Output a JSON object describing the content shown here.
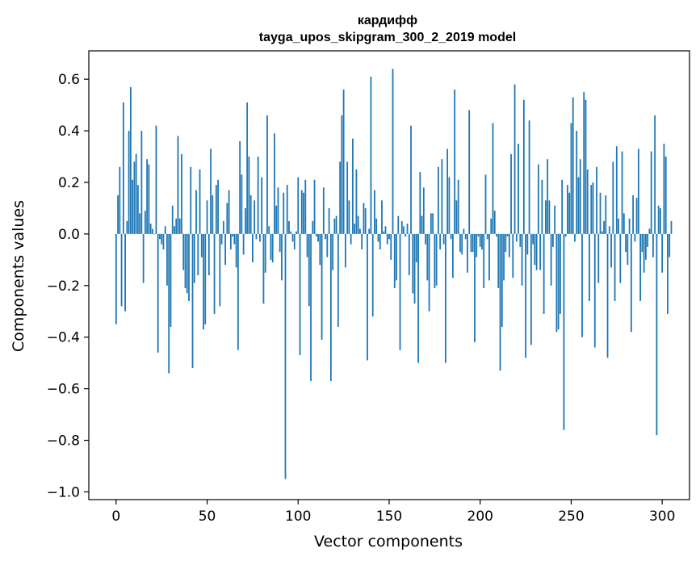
{
  "chart_data": {
    "type": "bar",
    "title": "кардифф",
    "subtitle": "tayga_upos_skipgram_300_2_2019 model",
    "xlabel": "Vector components",
    "ylabel": "Components values",
    "xlim": [
      -15,
      315
    ],
    "ylim": [
      -1.03,
      0.71
    ],
    "xticks": [
      0,
      50,
      100,
      150,
      200,
      250,
      300
    ],
    "yticks": [
      0.6,
      0.4,
      0.2,
      0.0,
      -0.2,
      -0.4,
      -0.6,
      -0.8,
      -1.0
    ],
    "ytick_labels": [
      "0.6",
      "0.4",
      "0.2",
      "0.0",
      "−0.2",
      "−0.4",
      "−0.6",
      "−0.8",
      "−1.0"
    ],
    "bar_color": "#1f77b4",
    "values": [
      -0.35,
      0.15,
      0.26,
      -0.28,
      0.51,
      -0.3,
      0.05,
      0.4,
      0.57,
      0.21,
      0.28,
      0.31,
      0.19,
      0.08,
      0.4,
      -0.19,
      0.09,
      0.29,
      0.27,
      0.04,
      0.02,
      0.0,
      0.42,
      -0.46,
      -0.02,
      -0.04,
      -0.06,
      0.03,
      -0.2,
      -0.54,
      -0.36,
      0.11,
      0.03,
      0.06,
      0.38,
      0.06,
      0.31,
      -0.14,
      -0.21,
      -0.23,
      -0.26,
      0.26,
      -0.52,
      -0.19,
      0.17,
      -0.16,
      0.25,
      -0.09,
      -0.37,
      -0.35,
      0.13,
      -0.16,
      0.33,
      0.15,
      -0.31,
      0.19,
      0.21,
      -0.28,
      -0.04,
      0.05,
      -0.12,
      0.12,
      0.17,
      -0.06,
      -0.01,
      -0.04,
      -0.13,
      -0.45,
      0.36,
      0.23,
      -0.08,
      0.1,
      0.51,
      0.3,
      0.15,
      -0.11,
      0.13,
      -0.02,
      0.3,
      -0.03,
      0.22,
      -0.27,
      -0.15,
      0.46,
      0.03,
      -0.1,
      -0.11,
      0.39,
      0.11,
      0.18,
      -0.07,
      -0.18,
      0.16,
      -0.95,
      0.19,
      0.05,
      0.01,
      -0.03,
      -0.06,
      0.01,
      0.22,
      -0.47,
      0.17,
      0.16,
      0.21,
      -0.09,
      -0.28,
      -0.57,
      0.05,
      0.21,
      -0.01,
      -0.03,
      -0.12,
      -0.41,
      0.18,
      -0.02,
      -0.09,
      0.1,
      -0.57,
      -0.14,
      0.06,
      0.07,
      -0.36,
      0.28,
      0.46,
      0.56,
      -0.13,
      0.28,
      0.13,
      -0.04,
      0.37,
      0.04,
      0.25,
      0.07,
      0.02,
      -0.06,
      0.12,
      0.1,
      -0.49,
      0.02,
      0.61,
      -0.32,
      0.17,
      0.06,
      -0.03,
      -0.06,
      0.13,
      0.01,
      0.03,
      -0.04,
      -0.02,
      -0.1,
      0.64,
      -0.21,
      -0.18,
      0.07,
      -0.45,
      0.05,
      0.03,
      -0.01,
      0.04,
      -0.16,
      0.42,
      -0.23,
      -0.27,
      -0.11,
      -0.5,
      0.24,
      0.07,
      0.18,
      -0.04,
      -0.18,
      -0.3,
      0.08,
      0.08,
      -0.21,
      -0.2,
      0.26,
      -0.06,
      0.29,
      -0.04,
      -0.5,
      0.33,
      0.22,
      -0.02,
      -0.17,
      0.56,
      0.13,
      0.21,
      -0.07,
      -0.08,
      0.02,
      -0.02,
      -0.15,
      0.48,
      -0.07,
      -0.07,
      -0.42,
      -0.09,
      -0.01,
      -0.05,
      -0.06,
      -0.21,
      0.23,
      -0.02,
      -0.18,
      0.06,
      0.43,
      0.09,
      -0.01,
      -0.21,
      -0.53,
      -0.36,
      -0.18,
      -0.07,
      -0.01,
      -0.09,
      0.31,
      -0.17,
      0.58,
      -0.03,
      0.35,
      -0.05,
      -0.2,
      0.52,
      -0.48,
      -0.08,
      0.44,
      -0.43,
      -0.04,
      -0.12,
      -0.14,
      0.27,
      -0.14,
      0.21,
      -0.31,
      0.13,
      0.29,
      0.13,
      -0.2,
      -0.05,
      0.11,
      -0.38,
      -0.37,
      -0.31,
      0.21,
      -0.76,
      -0.01,
      0.19,
      0.16,
      0.43,
      0.53,
      -0.03,
      0.4,
      0.22,
      0.29,
      -0.4,
      0.55,
      0.52,
      0.25,
      -0.26,
      0.19,
      0.2,
      -0.44,
      0.26,
      -0.19,
      0.16,
      0.01,
      0.05,
      0.15,
      -0.48,
      0.03,
      -0.13,
      0.28,
      -0.26,
      0.34,
      0.06,
      -0.19,
      0.32,
      0.08,
      -0.07,
      -0.12,
      0.06,
      -0.38,
      0.15,
      -0.03,
      0.14,
      0.33,
      -0.26,
      -0.07,
      -0.15,
      -0.1,
      -0.05,
      0.02,
      0.32,
      -0.09,
      0.46,
      -0.78,
      0.11,
      0.1,
      -0.15,
      0.35,
      0.3,
      -0.31,
      -0.09,
      0.05
    ]
  }
}
